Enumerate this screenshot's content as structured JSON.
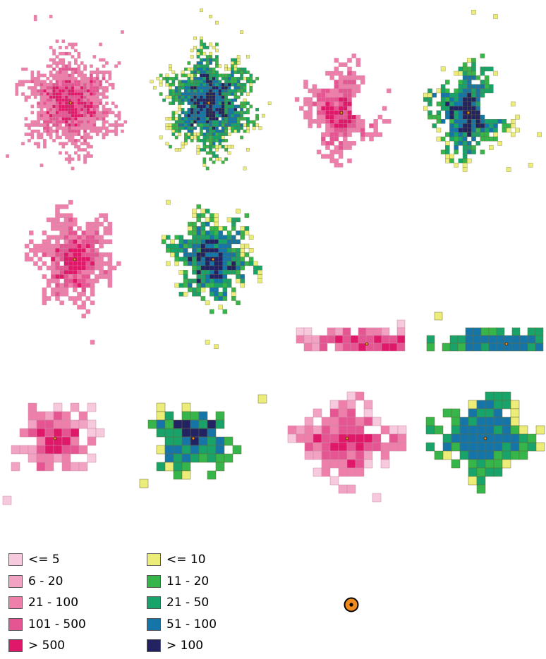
{
  "legend_population": [
    {
      "label": "<= 5",
      "color": "#f6c9dc"
    },
    {
      "label": "6 - 20",
      "color": "#f2a3c4"
    },
    {
      "label": "21 - 100",
      "color": "#ee7fab"
    },
    {
      "label": "101 - 500",
      "color": "#e45591"
    },
    {
      "label": "> 500",
      "color": "#e0186a"
    }
  ],
  "legend_density": [
    {
      "label": "<= 10",
      "color": "#ecec79"
    },
    {
      "label": "11 - 20",
      "color": "#35b54a"
    },
    {
      "label": "21 - 50",
      "color": "#17a369"
    },
    {
      "label": "51 - 100",
      "color": "#1675a8"
    },
    {
      "label": "> 100",
      "color": "#232363"
    }
  ],
  "center_marker": {
    "icon": "center-point-icon",
    "fill": "#f08a1c",
    "stroke": "#000000"
  }
}
